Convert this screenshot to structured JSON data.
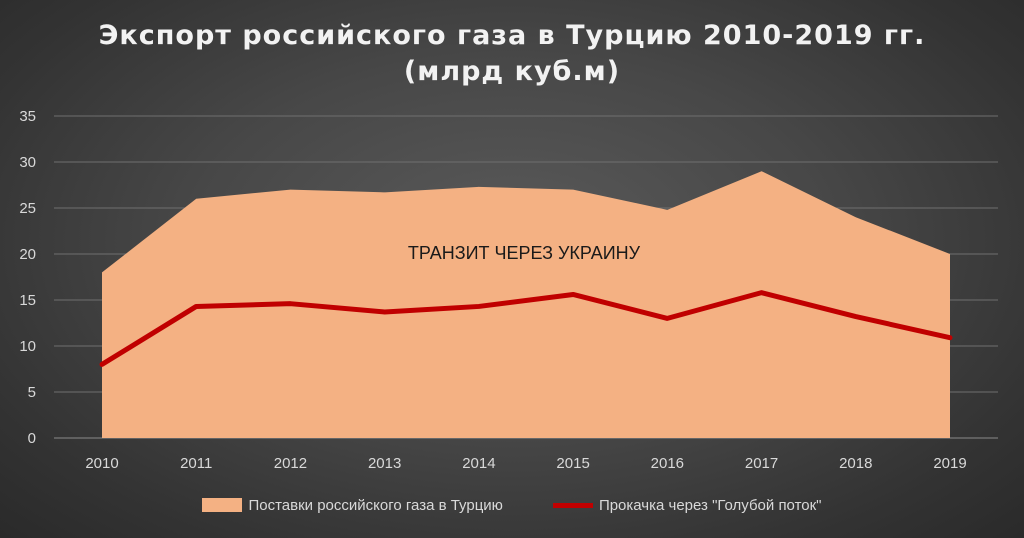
{
  "colors": {
    "area_fill": "#f4b183",
    "line": "#c00000",
    "grid": "#6f6f6f",
    "text": "#d9d9d9",
    "title": "#f2f2f2"
  },
  "chart_data": {
    "type": "area",
    "title": "Экспорт российского газа в Турцию 2010-2019 гг.",
    "subtitle": "(млрд куб.м)",
    "categories": [
      "2010",
      "2011",
      "2012",
      "2013",
      "2014",
      "2015",
      "2016",
      "2017",
      "2018",
      "2019"
    ],
    "series": [
      {
        "name": "Поставки российского газа в Турцию",
        "kind": "area",
        "values": [
          18.0,
          26.0,
          27.0,
          26.7,
          27.3,
          27.0,
          24.8,
          29.0,
          24.0,
          20.0
        ]
      },
      {
        "name": "Прокачка через \"Голубой поток\"",
        "kind": "line",
        "values": [
          8.0,
          14.3,
          14.6,
          13.7,
          14.3,
          15.6,
          13.0,
          15.8,
          13.2,
          10.9
        ]
      }
    ],
    "annotation": "ТРАНЗИТ ЧЕРЕЗ УКРАИНУ",
    "ylim": [
      0,
      35
    ],
    "yticks": [
      0,
      5,
      10,
      15,
      20,
      25,
      30,
      35
    ],
    "grid": true,
    "legend_position": "bottom"
  }
}
